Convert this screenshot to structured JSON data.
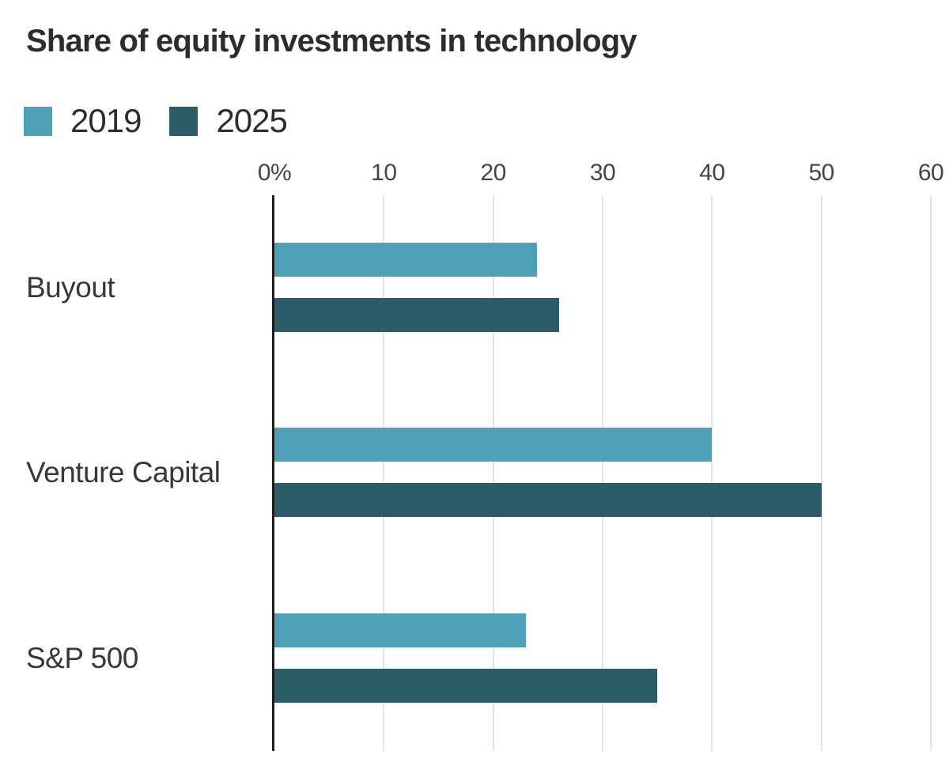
{
  "chart_data": {
    "type": "bar",
    "orientation": "horizontal",
    "title": "Share of equity investments in technology",
    "categories": [
      "Buyout",
      "Venture Capital",
      "S&P 500"
    ],
    "series": [
      {
        "name": "2019",
        "color": "#4CA1B8",
        "values": [
          24,
          40,
          23
        ]
      },
      {
        "name": "2025",
        "color": "#2B5D69",
        "values": [
          26,
          50,
          35
        ]
      }
    ],
    "xlim": [
      0,
      60
    ],
    "xticks": [
      0,
      10,
      20,
      30,
      40,
      50,
      60
    ],
    "xtick_labels": [
      "0%",
      "10",
      "20",
      "30",
      "40",
      "50",
      "60"
    ],
    "unit_suffix": "%",
    "grid": "vertical-light",
    "axis_zero_line": "black",
    "legend_position": "top-left",
    "background": "#ffffff"
  }
}
